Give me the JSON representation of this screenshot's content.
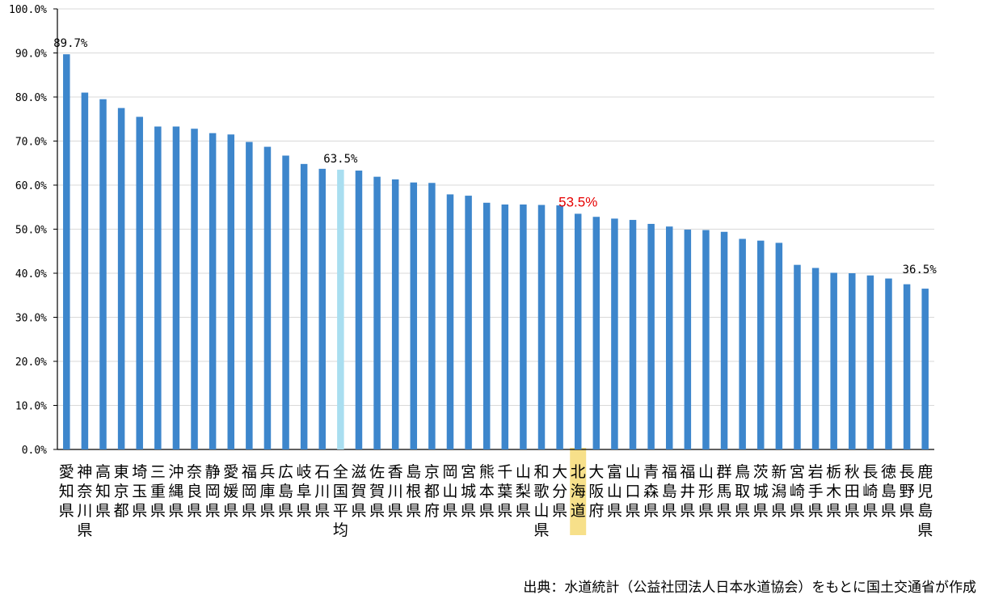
{
  "chart_data": {
    "type": "bar",
    "ylim": [
      0,
      100
    ],
    "yticks": [
      "0.0%",
      "10.0%",
      "20.0%",
      "30.0%",
      "40.0%",
      "50.0%",
      "60.0%",
      "70.0%",
      "80.0%",
      "90.0%",
      "100.0%"
    ],
    "grid": true,
    "categories": [
      "愛知県",
      "神奈川県",
      "高知県",
      "東京都",
      "埼玉県",
      "三重県",
      "沖縄県",
      "奈良県",
      "静岡県",
      "愛媛県",
      "福岡県",
      "兵庫県",
      "広島県",
      "岐阜県",
      "石川県",
      "全国平均",
      "滋賀県",
      "佐賀県",
      "香川県",
      "島根県",
      "京都府",
      "岡山県",
      "宮城県",
      "熊本県",
      "千葉県",
      "山梨県",
      "和歌山県",
      "大分県",
      "北海道",
      "大阪府",
      "富山県",
      "山口県",
      "青森県",
      "福島県",
      "福井県",
      "山形県",
      "群馬県",
      "鳥取県",
      "茨城県",
      "新潟県",
      "宮崎県",
      "岩手県",
      "栃木県",
      "秋田県",
      "長崎県",
      "徳島県",
      "長野県",
      "鹿児島県"
    ],
    "values": [
      89.7,
      81.0,
      79.5,
      77.5,
      75.5,
      73.3,
      73.3,
      72.8,
      71.8,
      71.5,
      69.8,
      68.7,
      66.7,
      64.8,
      63.7,
      63.5,
      63.3,
      61.9,
      61.3,
      60.6,
      60.5,
      57.9,
      57.6,
      56.0,
      55.6,
      55.6,
      55.5,
      55.4,
      53.5,
      52.8,
      52.4,
      52.1,
      51.2,
      50.6,
      49.9,
      49.8,
      49.4,
      47.8,
      47.4,
      46.9,
      41.9,
      41.2,
      40.1,
      40.0,
      39.5,
      38.8,
      37.5,
      36.5
    ],
    "colors": {
      "bar": "#3d86cc",
      "average_bar": "#a9def0",
      "highlight_band": "#f7e08a",
      "highlight_label": "#e60000"
    },
    "average_category": "全国平均",
    "highlight_category": "北海道",
    "data_labels": [
      {
        "category": "愛知県",
        "text": "89.7%"
      },
      {
        "category": "全国平均",
        "text": "63.5%"
      },
      {
        "category": "北海道",
        "text": "53.5%"
      },
      {
        "category": "鹿児島県",
        "text": "36.5%"
      }
    ]
  },
  "source_note": "出典：水道統計（公益社団法人日本水道協会）をもとに国土交通省が作成"
}
